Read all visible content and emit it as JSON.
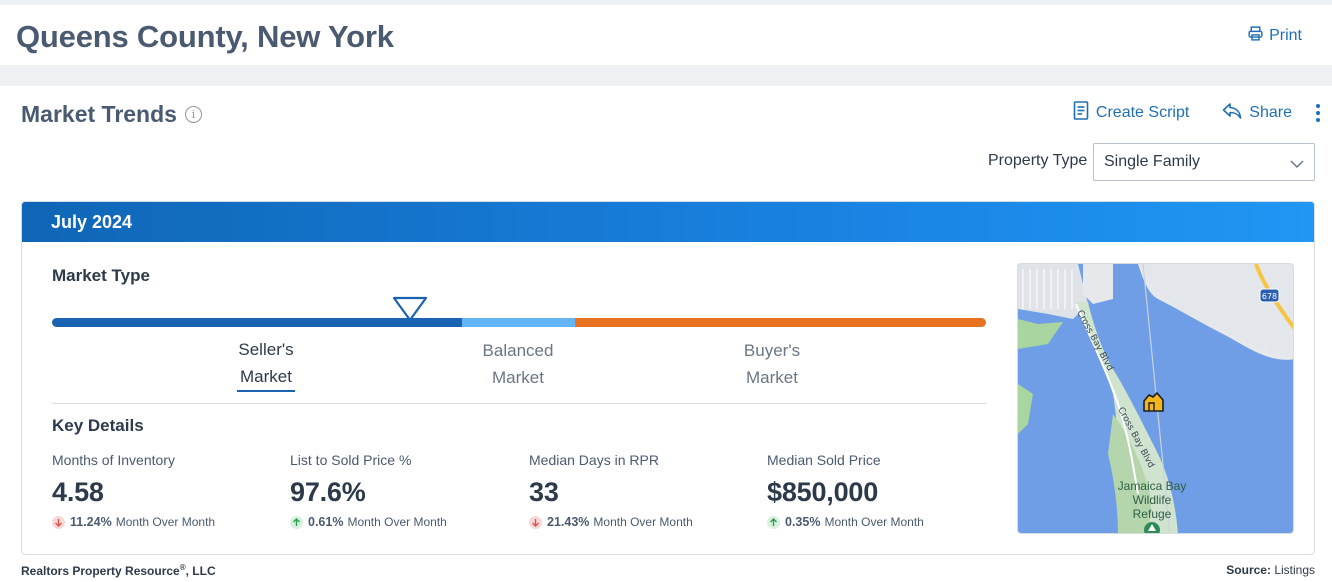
{
  "header": {
    "title": "Queens County, New York",
    "print_label": "Print"
  },
  "section": {
    "title": "Market Trends",
    "create_script_label": "Create Script",
    "share_label": "Share"
  },
  "property_type": {
    "label": "Property Type",
    "selected": "Single Family"
  },
  "card": {
    "period": "July 2024",
    "market_type_label": "Market Type",
    "market_type_current": "Seller's Market",
    "market_segments": [
      {
        "line1": "Seller's",
        "line2": "Market",
        "active": true
      },
      {
        "line1": "Balanced",
        "line2": "Market",
        "active": false
      },
      {
        "line1": "Buyer's",
        "line2": "Market",
        "active": false
      }
    ],
    "key_details_label": "Key Details",
    "details": [
      {
        "name": "Months of Inventory",
        "value": "4.58",
        "change": "11.24%",
        "direction": "down",
        "change_label": "Month Over Month"
      },
      {
        "name": "List to Sold Price %",
        "value": "97.6%",
        "change": "0.61%",
        "direction": "up",
        "change_label": "Month Over Month"
      },
      {
        "name": "Median Days in RPR",
        "value": "33",
        "change": "21.43%",
        "direction": "down",
        "change_label": "Month Over Month"
      },
      {
        "name": "Median Sold Price",
        "value": "$850,000",
        "change": "0.35%",
        "direction": "up",
        "change_label": "Month Over Month"
      }
    ]
  },
  "map": {
    "road_label_1": "Cross Bay Blvd",
    "road_label_2": "Cross Bay Blvd",
    "shield": "678",
    "place_line1": "Jamaica Bay",
    "place_line2": "Wildlife",
    "place_line3": "Refuge"
  },
  "footer": {
    "company": "Realtors Property Resource",
    "company_mark": "®",
    "company_suffix": ", LLC",
    "source_label": "Source:",
    "source_value": "Listings"
  },
  "colors": {
    "accent": "#1f6fb5",
    "seller": "#1a63b3",
    "balanced": "#64b5f6",
    "buyer": "#e8721f",
    "down": "#d9534f",
    "up": "#2e9e4f"
  }
}
